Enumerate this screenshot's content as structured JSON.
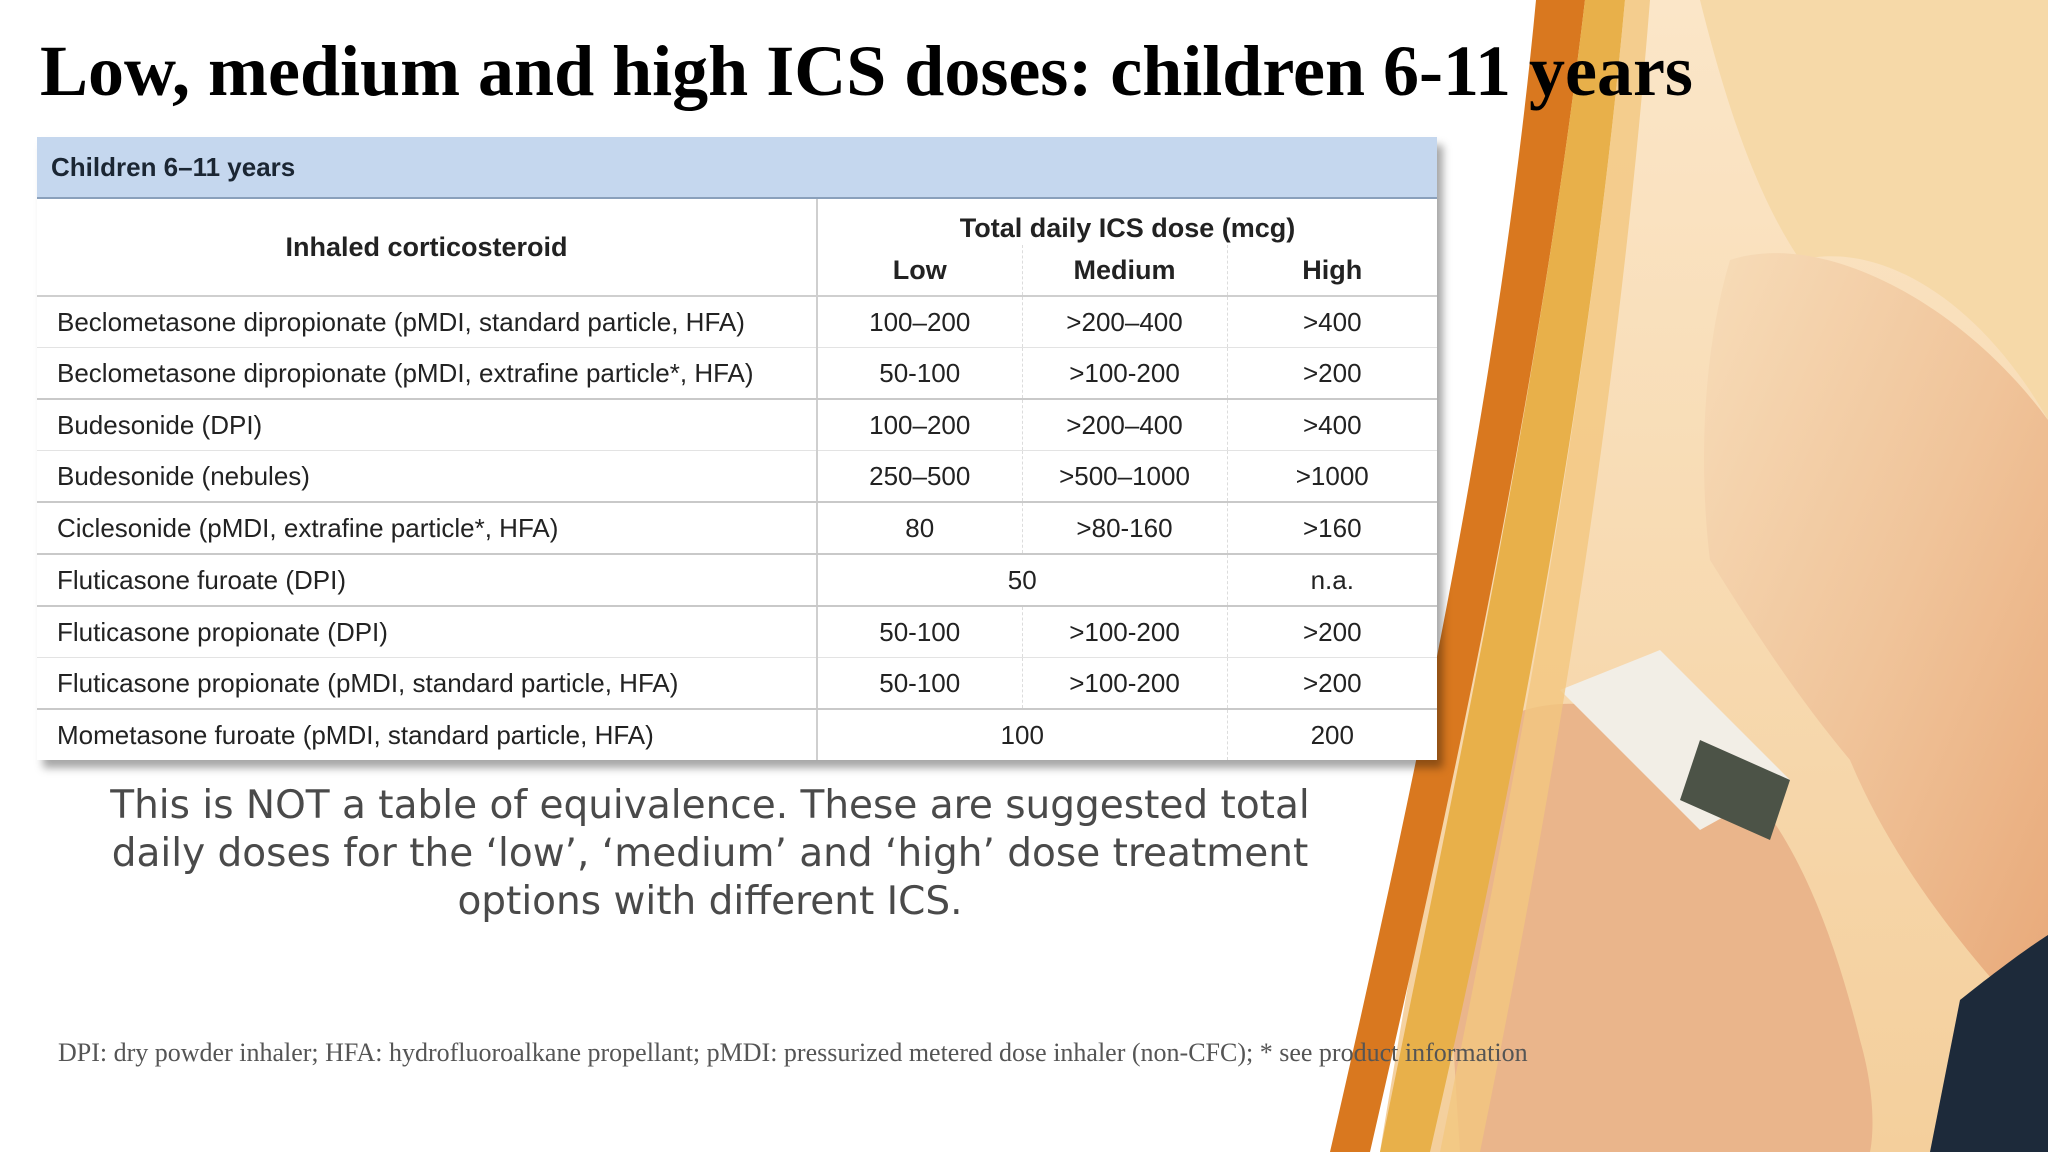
{
  "slide": {
    "title": "Low, medium and high ICS doses: children 6-11 years",
    "note": "This is NOT a table of equivalence. These are suggested total daily doses for the ‘low’, ‘medium’ and ‘high’ dose treatment options with different ICS.",
    "footnote": "DPI: dry powder inhaler; HFA: hydrofluoroalkane propellant; pMDI: pressurized metered dose inhaler (non-CFC); * see product information"
  },
  "table": {
    "caption": "Children 6–11 years",
    "col_drug": "Inhaled corticosteroid",
    "col_total": "Total daily ICS dose (mcg)",
    "col_low": "Low",
    "col_medium": "Medium",
    "col_high": "High",
    "rows": [
      {
        "drug": "Beclometasone dipropionate (pMDI, standard particle, HFA)",
        "low": "100–200",
        "medium": ">200–400",
        "high": ">400"
      },
      {
        "drug": "Beclometasone dipropionate (pMDI, extrafine particle*, HFA)",
        "low": "50-100",
        "medium": ">100-200",
        "high": ">200"
      },
      {
        "drug": "Budesonide (DPI)",
        "low": "100–200",
        "medium": ">200–400",
        "high": ">400"
      },
      {
        "drug": "Budesonide (nebules)",
        "low": "250–500",
        "medium": ">500–1000",
        "high": ">1000"
      },
      {
        "drug": "Ciclesonide (pMDI, extrafine particle*, HFA)",
        "low": "80",
        "medium": ">80-160",
        "high": ">160"
      },
      {
        "drug": "Fluticasone furoate (DPI)",
        "low_medium": "50",
        "high": "n.a."
      },
      {
        "drug": "Fluticasone propionate (DPI)",
        "low": "50-100",
        "medium": ">100-200",
        "high": ">200"
      },
      {
        "drug": "Fluticasone propionate (pMDI, standard particle, HFA)",
        "low": "50-100",
        "medium": ">100-200",
        "high": ">200"
      },
      {
        "drug": "Mometasone furoate (pMDI, standard particle, HFA)",
        "low_medium": "100",
        "high": "200"
      }
    ]
  },
  "colors": {
    "caption_bg": "#c5d7ee",
    "orange_band": "#d9781f",
    "gold_band": "#e8b04a"
  }
}
